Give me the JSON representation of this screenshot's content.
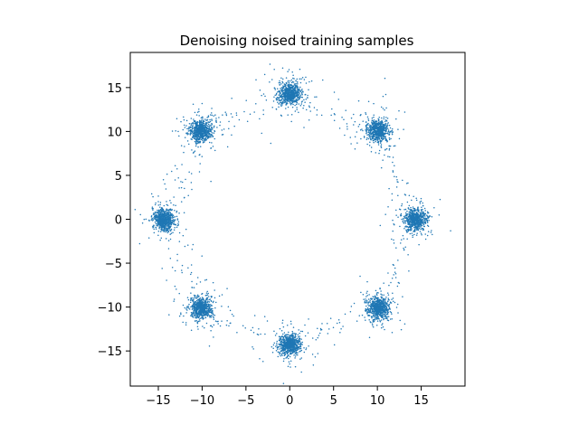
{
  "chart_data": {
    "type": "scatter",
    "title": "Denoising noised training samples",
    "xlabel": "",
    "ylabel": "",
    "xlim": [
      -18.2,
      20.0
    ],
    "ylim": [
      -19.0,
      19.0
    ],
    "xticks": [
      -15,
      -10,
      -5,
      0,
      5,
      10,
      15
    ],
    "yticks": [
      -15,
      -10,
      -5,
      0,
      5,
      10,
      15
    ],
    "xtick_labels": [
      "−15",
      "−10",
      "−5",
      "0",
      "5",
      "10",
      "15"
    ],
    "ytick_labels": [
      "−15",
      "−10",
      "−5",
      "0",
      "5",
      "10",
      "15"
    ],
    "grid": false,
    "legend": "none",
    "marker_color": "#1f77b4",
    "clusters": [
      {
        "x": 0.0,
        "y": 14.3,
        "n": 700,
        "spread": 0.6
      },
      {
        "x": 10.1,
        "y": 10.1,
        "n": 700,
        "spread": 0.6
      },
      {
        "x": 14.3,
        "y": 0.0,
        "n": 700,
        "spread": 0.6
      },
      {
        "x": 10.1,
        "y": -10.1,
        "n": 700,
        "spread": 0.6
      },
      {
        "x": 0.0,
        "y": -14.3,
        "n": 700,
        "spread": 0.6
      },
      {
        "x": -10.1,
        "y": -10.1,
        "n": 700,
        "spread": 0.6
      },
      {
        "x": -14.3,
        "y": 0.0,
        "n": 700,
        "spread": 0.6
      },
      {
        "x": -10.1,
        "y": 10.1,
        "n": 700,
        "spread": 0.6
      }
    ]
  }
}
